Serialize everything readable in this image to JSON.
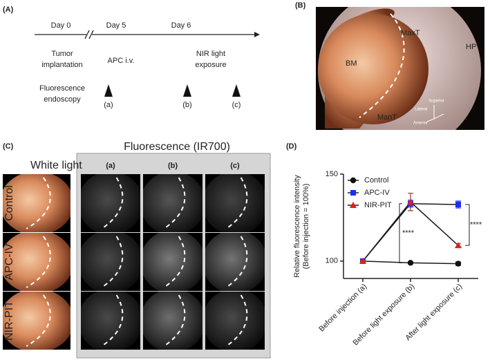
{
  "panel_a": {
    "label": "(A)",
    "days": [
      "Day 0",
      "Day 5",
      "Day 6"
    ],
    "events": [
      [
        "Tumor",
        "implantation"
      ],
      [
        "APC i.v."
      ],
      [
        "NIR light",
        "exposure"
      ]
    ],
    "procedure": [
      "Fluorescence",
      "endoscopy"
    ],
    "timepoints": [
      "(a)",
      "(b)",
      "(c)"
    ]
  },
  "panel_b": {
    "label": "(B)",
    "regions": [
      "BM",
      "MaxT",
      "HP",
      "ManT"
    ],
    "orientation": [
      "Superior",
      "Lateral",
      "Anterior"
    ]
  },
  "panel_c": {
    "label": "(C)",
    "white_light": "White light",
    "fluorescence": "Fluorescence (IR700)",
    "columns": [
      "(a)",
      "(b)",
      "(c)"
    ],
    "rows": [
      "Control",
      "APC-IV",
      "NIR-PIT"
    ]
  },
  "chart_data": {
    "type": "line",
    "panel_label": "(D)",
    "y_label": [
      "Relative fluorescence intensity",
      "(Before injection = 100%)"
    ],
    "categories": [
      "Before injection (a)",
      "Before light exposure (b)",
      "After light exposure (c)"
    ],
    "series": [
      {
        "name": "Control",
        "color": "#111111",
        "marker": "circle",
        "values": [
          100,
          99,
          98.5
        ],
        "errors": [
          0.5,
          0.5,
          1
        ]
      },
      {
        "name": "APC-IV",
        "color": "#1a2cff",
        "marker": "square",
        "values": [
          100,
          133,
          132.5
        ],
        "errors": [
          0.5,
          2,
          2
        ]
      },
      {
        "name": "NIR-PIT",
        "color": "#e0201b",
        "marker": "triangle",
        "values": [
          100,
          134,
          109
        ],
        "errors": [
          0.5,
          5,
          1
        ]
      }
    ],
    "ylim": [
      90,
      150
    ],
    "yticks": [
      100,
      150
    ],
    "grid": false,
    "legend": "upper-left",
    "annotations": [
      "****",
      "****"
    ]
  }
}
